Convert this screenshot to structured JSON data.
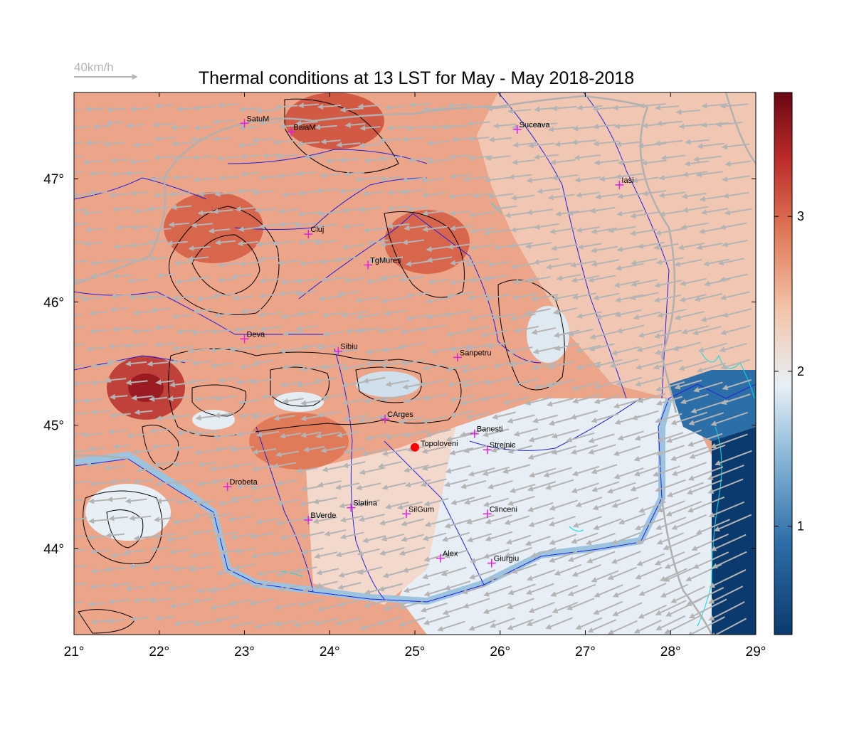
{
  "title": "Thermal conditions at 13 LST for May - May  2018-2018",
  "wind_scale": {
    "label": "40km/h",
    "speed_kmh": 40
  },
  "map": {
    "lon_range": [
      21,
      29
    ],
    "lat_range": [
      43.3,
      47.7
    ],
    "lon_ticks": [
      21,
      22,
      23,
      24,
      25,
      26,
      27,
      28,
      29
    ],
    "lat_ticks": [
      44,
      45,
      46,
      47
    ],
    "lon_tick_labels": [
      "21°",
      "22°",
      "23°",
      "24°",
      "25°",
      "26°",
      "27°",
      "28°",
      "29°"
    ],
    "lat_tick_labels": [
      "44°",
      "45°",
      "46°",
      "47°"
    ]
  },
  "colorbar": {
    "range": [
      0.3,
      3.8
    ],
    "ticks": [
      1,
      2,
      3
    ],
    "tick_labels": [
      "1",
      "2",
      "3"
    ],
    "colors": [
      "#0a3a6e",
      "#2c6ea8",
      "#8ab8d8",
      "#e8f0f6",
      "#f4c4aa",
      "#e07a58",
      "#bb2a28",
      "#6a0614"
    ]
  },
  "cities": [
    {
      "name": "SatuM",
      "lon": 23.0,
      "lat": 47.45
    },
    {
      "name": "BaiaM",
      "lon": 23.55,
      "lat": 47.38
    },
    {
      "name": "Suceava",
      "lon": 26.2,
      "lat": 47.4
    },
    {
      "name": "Iasi",
      "lon": 27.4,
      "lat": 46.95
    },
    {
      "name": "Cluj",
      "lon": 23.75,
      "lat": 46.55
    },
    {
      "name": "TgMures",
      "lon": 24.45,
      "lat": 46.3
    },
    {
      "name": "Deva",
      "lon": 23.0,
      "lat": 45.7
    },
    {
      "name": "Sibiu",
      "lon": 24.1,
      "lat": 45.6
    },
    {
      "name": "Sanpetru",
      "lon": 25.5,
      "lat": 45.55
    },
    {
      "name": "CArges",
      "lon": 24.65,
      "lat": 45.05
    },
    {
      "name": "Banesti",
      "lon": 25.7,
      "lat": 44.93
    },
    {
      "name": "Strejnic",
      "lon": 25.85,
      "lat": 44.8
    },
    {
      "name": "Drobeta",
      "lon": 22.8,
      "lat": 44.5
    },
    {
      "name": "Slatina",
      "lon": 24.25,
      "lat": 44.33
    },
    {
      "name": "SilGum",
      "lon": 24.9,
      "lat": 44.28
    },
    {
      "name": "Clinceni",
      "lon": 25.85,
      "lat": 44.28
    },
    {
      "name": "BVerde",
      "lon": 23.75,
      "lat": 44.23
    },
    {
      "name": "Alex",
      "lon": 25.3,
      "lat": 43.92
    },
    {
      "name": "Giurgiu",
      "lon": 25.9,
      "lat": 43.88
    }
  ],
  "site": {
    "name": "Topoloveni",
    "lon": 25.0,
    "lat": 44.82,
    "color": "#ff0000"
  },
  "colors": {
    "city_marker": "#e020e0",
    "border": "#b0b0b0",
    "river": "#2020e0",
    "wind": "#b4b4b4"
  }
}
